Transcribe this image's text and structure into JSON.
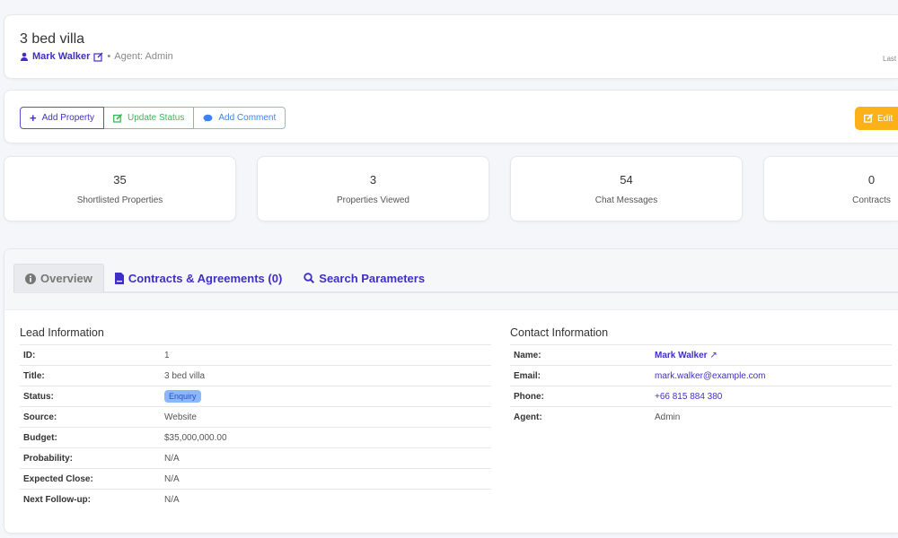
{
  "header": {
    "title": "3 bed villa",
    "contact_name": "Mark Walker",
    "separator": "•",
    "agent_text": "Agent: Admin",
    "last_label": "Last"
  },
  "actions": {
    "add_property": "Add Property",
    "update_status": "Update Status",
    "add_comment": "Add Comment",
    "edit": "Edit"
  },
  "stats": [
    {
      "value": "35",
      "label": "Shortlisted Properties"
    },
    {
      "value": "3",
      "label": "Properties Viewed"
    },
    {
      "value": "54",
      "label": "Chat Messages"
    },
    {
      "value": "0",
      "label": "Contracts"
    }
  ],
  "tabs": [
    {
      "label": "Overview",
      "active": true
    },
    {
      "label": "Contracts & Agreements (0)"
    },
    {
      "label": "Search Parameters"
    }
  ],
  "lead": {
    "title": "Lead Information",
    "rows": [
      {
        "k": "ID:",
        "v": "1"
      },
      {
        "k": "Title:",
        "v": "3 bed villa"
      },
      {
        "k": "Status:",
        "v": "Enquiry"
      },
      {
        "k": "Source:",
        "v": "Website"
      },
      {
        "k": "Budget:",
        "v": "$35,000,000.00"
      },
      {
        "k": "Probability:",
        "v": "N/A"
      },
      {
        "k": "Expected Close:",
        "v": "N/A"
      },
      {
        "k": "Next Follow-up:",
        "v": "N/A"
      }
    ]
  },
  "contact": {
    "title": "Contact Information",
    "rows": [
      {
        "k": "Name:",
        "v": "Mark Walker"
      },
      {
        "k": "Email:",
        "v": "mark.walker@example.com"
      },
      {
        "k": "Phone:",
        "v": "+66 815 884 380"
      },
      {
        "k": "Agent:",
        "v": "Admin"
      }
    ]
  },
  "colors": {
    "primary": "#3f2fc7",
    "success": "#3cb55a",
    "info": "#3b82f6",
    "warning": "#fbb117",
    "badge": "#8ab8f9"
  }
}
